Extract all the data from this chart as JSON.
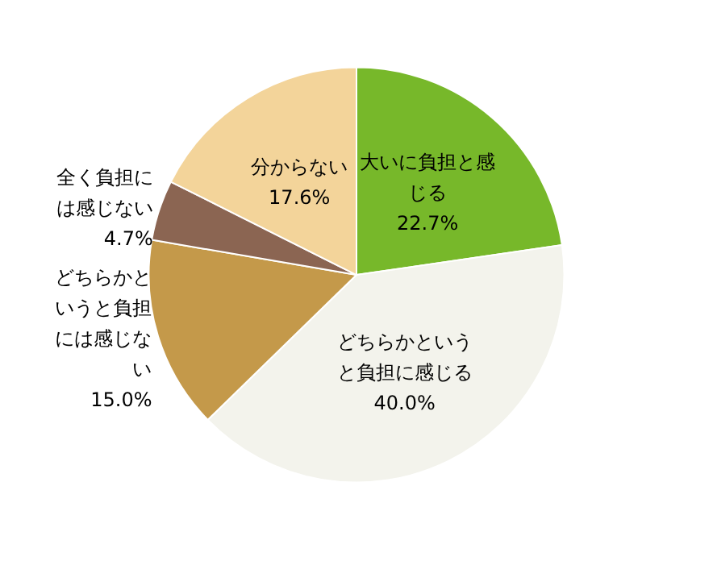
{
  "chart_data": {
    "type": "pie",
    "categories": [
      "大いに負担と感じる",
      "どちらかというと負担に感じる",
      "どちらかというと負担には感じない",
      "全く負担には感じない",
      "分からない"
    ],
    "values": [
      22.7,
      40.0,
      15.0,
      4.7,
      17.6
    ],
    "colors": [
      "#77b82a",
      "#f3f3ec",
      "#c4994a",
      "#8b6552",
      "#f3d49a"
    ],
    "value_labels": [
      "22.7%",
      "40.0%",
      "15.0%",
      "4.7%",
      "17.6%"
    ],
    "legend": false
  }
}
